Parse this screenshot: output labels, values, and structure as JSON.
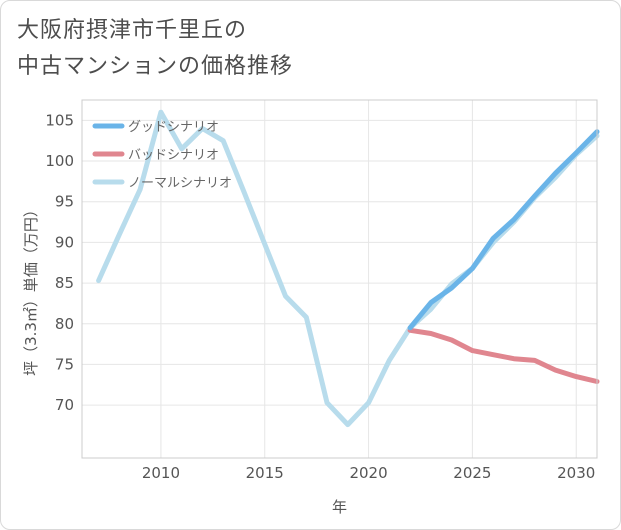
{
  "title_lines": [
    "大阪府摂津市千里丘の",
    "中古マンションの価格推移"
  ],
  "chart_data": {
    "type": "line",
    "title": "大阪府摂津市千里丘の中古マンションの価格推移",
    "xlabel": "年",
    "ylabel": "坪（3.3㎡）単価（万円）",
    "xlim": [
      2006.2,
      2031
    ],
    "ylim": [
      63.5,
      107.5
    ],
    "x_ticks": [
      2010,
      2015,
      2020,
      2025,
      2030
    ],
    "y_ticks": [
      70,
      75,
      80,
      85,
      90,
      95,
      100,
      105
    ],
    "grid": true,
    "legend_position": "top-left",
    "series": [
      {
        "name": "グッドシナリオ",
        "color": "#6ab4e8",
        "x": [
          2022,
          2023,
          2024,
          2025,
          2026,
          2027,
          2028,
          2029,
          2030,
          2031
        ],
        "y": [
          79.5,
          82.6,
          84.4,
          86.8,
          90.5,
          92.8,
          95.7,
          98.5,
          101.0,
          103.6
        ]
      },
      {
        "name": "バッドシナリオ",
        "color": "#e0868f",
        "x": [
          2022,
          2023,
          2024,
          2025,
          2026,
          2027,
          2028,
          2029,
          2030,
          2031
        ],
        "y": [
          79.2,
          78.8,
          78.0,
          76.7,
          76.2,
          75.7,
          75.5,
          74.3,
          73.5,
          72.9
        ]
      },
      {
        "name": "ノーマルシナリオ",
        "color": "#b8dcec",
        "x": [
          2007,
          2008,
          2009,
          2010,
          2011,
          2012,
          2013,
          2014,
          2015,
          2016,
          2017,
          2018,
          2019,
          2020,
          2021,
          2022,
          2023,
          2024,
          2025,
          2026,
          2027,
          2028,
          2029,
          2030,
          2031
        ],
        "y": [
          85.3,
          91.0,
          96.5,
          106.0,
          101.5,
          104.0,
          102.5,
          96.2,
          89.8,
          83.4,
          80.8,
          70.3,
          67.6,
          70.3,
          75.5,
          79.5,
          81.8,
          84.9,
          86.8,
          90.0,
          92.5,
          95.5,
          98.0,
          100.8,
          103.1
        ]
      }
    ]
  }
}
